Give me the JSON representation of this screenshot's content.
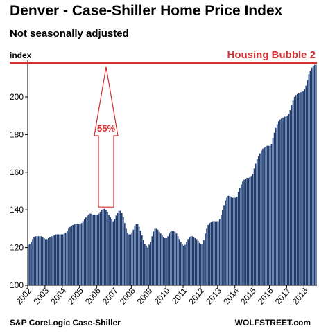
{
  "header": {
    "title": "Denver - Case-Shiller Home Price Index",
    "subtitle": "Not seasonally adjusted"
  },
  "footer": {
    "source": "S&P CoreLogic Case-Shiller",
    "brand": "WOLFSTREET.com"
  },
  "colors": {
    "bar": "#1f3d73",
    "bar_edge": "#0d1f40",
    "annotation": "#d32f2f",
    "axis": "#000000"
  },
  "chart_data": {
    "type": "bar",
    "ylabel": "index",
    "ylim": [
      100,
      218
    ],
    "yticks": [
      100,
      120,
      140,
      160,
      180,
      200
    ],
    "xticks": [
      "2002",
      "2003",
      "2004",
      "2005",
      "2006",
      "2007",
      "2008",
      "2009",
      "2010",
      "2011",
      "2012",
      "2013",
      "2014",
      "2015",
      "2016",
      "2017",
      "2018"
    ],
    "x_start": "2002-01",
    "grid": false,
    "reference_line": {
      "value": 217,
      "label": "Housing Bubble 2"
    },
    "annotation": {
      "label": "55%",
      "from_value": 140,
      "to_value": 217
    },
    "values": [
      121.5,
      122,
      123,
      124.5,
      125.5,
      126,
      126,
      126,
      126,
      126,
      125.5,
      125,
      124.5,
      124.5,
      125,
      125.5,
      126,
      126,
      126.5,
      127,
      127,
      127,
      127,
      127,
      127,
      127.5,
      128,
      129,
      130,
      131,
      131.5,
      132,
      132.5,
      132.5,
      132.5,
      132.5,
      132.5,
      133,
      134,
      135,
      136,
      137,
      137.5,
      138,
      138,
      137.5,
      137.5,
      137.5,
      137.5,
      138,
      139,
      140,
      140.5,
      140.5,
      140,
      139,
      137.5,
      136,
      135,
      134,
      135,
      137,
      138.5,
      139.5,
      139.5,
      138.5,
      136,
      133,
      130,
      128,
      127,
      127,
      128,
      129.5,
      131.5,
      132.5,
      132.5,
      131,
      129,
      126.5,
      124,
      122,
      121,
      120,
      121.5,
      123,
      126,
      128.5,
      130,
      130,
      129.5,
      128.5,
      127.5,
      126.5,
      125.5,
      125,
      125,
      126,
      127.5,
      128.5,
      129,
      129,
      128.5,
      127.5,
      126,
      124.5,
      123,
      122,
      121,
      121.5,
      123,
      124.5,
      125.5,
      126,
      126,
      125.5,
      125,
      124.5,
      123.5,
      122.5,
      122,
      122,
      124,
      127.5,
      130,
      132,
      133,
      133.5,
      134,
      134,
      134,
      134,
      134,
      135,
      137.5,
      140,
      142.5,
      145,
      146.5,
      147.5,
      147.5,
      147,
      146.5,
      146.5,
      146.5,
      147,
      149.5,
      151.5,
      153.5,
      155,
      156,
      156.5,
      157,
      157,
      157.5,
      158,
      159,
      162,
      164.5,
      167,
      168.5,
      170,
      171.5,
      172.5,
      173,
      173.5,
      174,
      174,
      174,
      175,
      178,
      181,
      183.5,
      185.5,
      187,
      188,
      188.5,
      189,
      189.5,
      189.5,
      190,
      191,
      193,
      195.5,
      198,
      200,
      201,
      201.5,
      202,
      202.5,
      202.5,
      203,
      204,
      206,
      209,
      212,
      214,
      215.5,
      216.5,
      217,
      217
    ]
  }
}
